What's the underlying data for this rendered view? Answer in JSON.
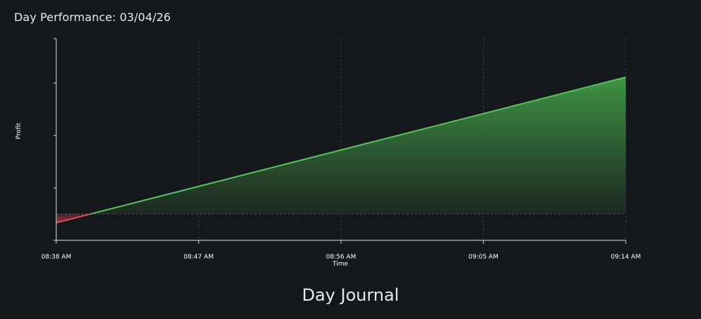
{
  "header": {
    "title": "Day Performance: 03/04/26"
  },
  "journal": {
    "title": "Day Journal"
  },
  "chart_data": {
    "type": "area",
    "title": "Day Performance: 03/04/26",
    "xlabel": "Time",
    "ylabel": "Profit",
    "x_ticks": [
      "08:38 AM",
      "08:47 AM",
      "08:56 AM",
      "09:05 AM",
      "09:14 AM"
    ],
    "x_minutes": [
      0,
      36
    ],
    "ylim": [
      -15,
      100
    ],
    "y_ticks_shown": false,
    "baseline": 0,
    "grid": "vertical-dashed",
    "points": [
      {
        "x": "08:38 AM",
        "y": -5
      },
      {
        "x": "09:14 AM",
        "y": 78
      }
    ],
    "colors": {
      "positive": "#5cc15f",
      "negative": "#d9505a",
      "background": "#14171c",
      "axis": "#bdbdbd",
      "grid": "#3a3f46"
    }
  }
}
